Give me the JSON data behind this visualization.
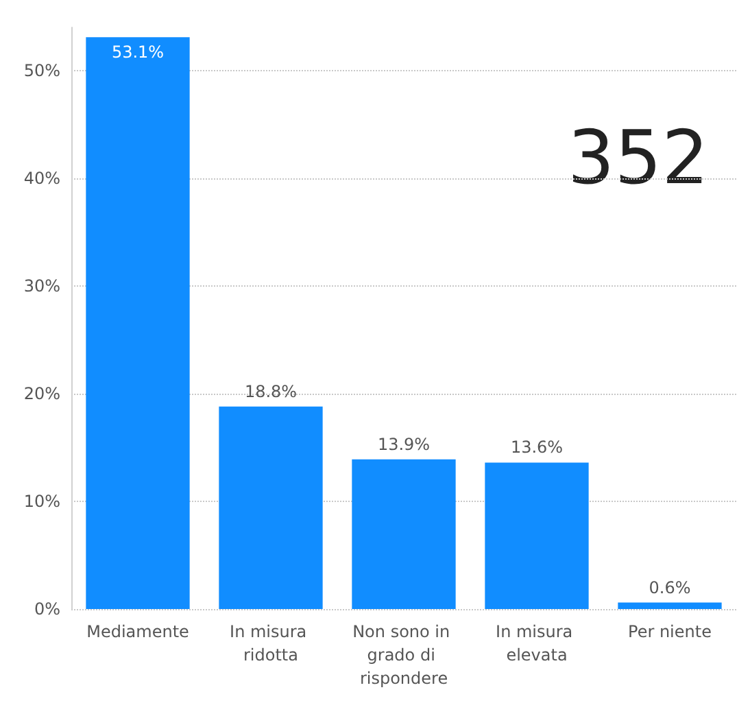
{
  "chart_data": {
    "type": "bar",
    "categories": [
      "Mediamente",
      "In misura ridotta",
      "Non sono in grado di rispondere",
      "In misura elevata",
      "Per niente"
    ],
    "values": [
      53.1,
      18.8,
      13.9,
      13.6,
      0.6
    ],
    "value_labels": [
      "53.1%",
      "18.8%",
      "13.9%",
      "13.6%",
      "0.6%"
    ],
    "color": "#118dff",
    "yticks": [
      {
        "value": 0,
        "label": "0%"
      },
      {
        "value": 10,
        "label": "10%"
      },
      {
        "value": 20,
        "label": "20%"
      },
      {
        "value": 30,
        "label": "30%"
      },
      {
        "value": 40,
        "label": "40%"
      },
      {
        "value": 50,
        "label": "50%"
      }
    ],
    "ylim": [
      0,
      54
    ],
    "grid": "y",
    "annotations": [
      "352"
    ]
  }
}
